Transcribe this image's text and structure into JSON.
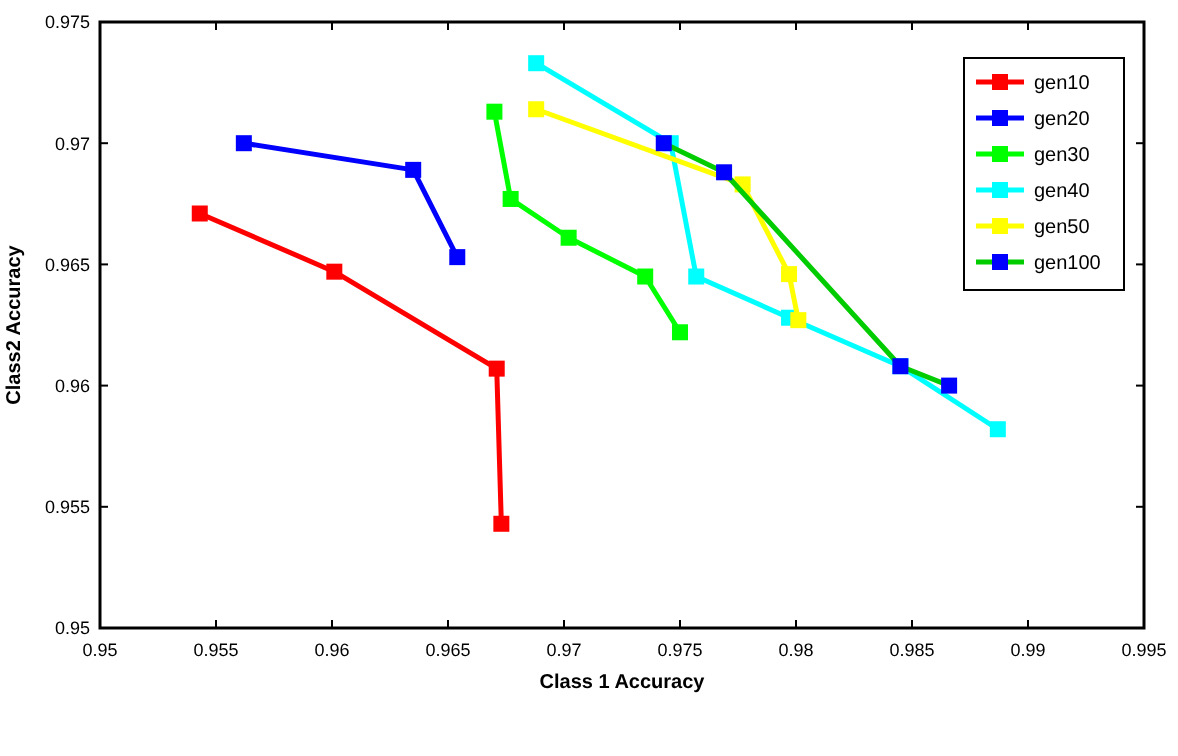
{
  "chart_data": {
    "type": "line",
    "xlabel": "Class 1 Accuracy",
    "ylabel": "Class2 Accuracy",
    "xlim": [
      0.95,
      0.995
    ],
    "ylim": [
      0.95,
      0.975
    ],
    "xticks": [
      0.95,
      0.955,
      0.96,
      0.965,
      0.97,
      0.975,
      0.98,
      0.985,
      0.99,
      0.995
    ],
    "yticks": [
      0.95,
      0.955,
      0.96,
      0.965,
      0.97,
      0.975
    ],
    "marker": "square",
    "line_style": "solid",
    "legend": "top right",
    "grid": false,
    "series": [
      {
        "name": "gen10",
        "color": "#ff0000",
        "x": [
          0.9543,
          0.9601,
          0.9671,
          0.9673
        ],
        "values": [
          0.9671,
          0.9647,
          0.9607,
          0.9543
        ]
      },
      {
        "name": "gen20",
        "color": "#0000ff",
        "x": [
          0.9562,
          0.9635,
          0.9654
        ],
        "values": [
          0.97,
          0.9689,
          0.9653
        ]
      },
      {
        "name": "gen30",
        "color": "#00ff00",
        "x": [
          0.967,
          0.9677,
          0.9702,
          0.9735,
          0.975
        ],
        "values": [
          0.9713,
          0.9677,
          0.9661,
          0.9645,
          0.9622
        ]
      },
      {
        "name": "gen40",
        "color": "#00ffff",
        "x": [
          0.9688,
          0.9746,
          0.9757,
          0.9797,
          0.9845,
          0.9887
        ],
        "values": [
          0.9733,
          0.97,
          0.9645,
          0.9628,
          0.9608,
          0.9582
        ]
      },
      {
        "name": "gen50",
        "color": "#ffff00",
        "x": [
          0.9688,
          0.9777,
          0.9797,
          0.9801
        ],
        "values": [
          0.9714,
          0.9683,
          0.9646,
          0.9627
        ]
      },
      {
        "name": "gen100",
        "color": "#00cc00",
        "colors": [
          "#0000ff",
          "#0000ff",
          "#0000ff",
          "#0000ff"
        ],
        "x": [
          0.9743,
          0.9769,
          0.9845,
          0.9866
        ],
        "values": [
          0.97,
          0.9688,
          0.9608,
          0.96
        ]
      }
    ]
  }
}
